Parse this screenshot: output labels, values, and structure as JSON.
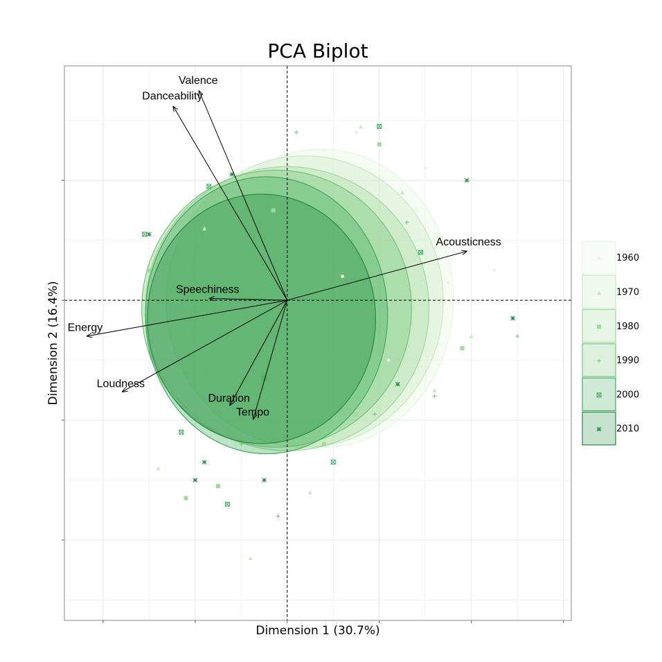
{
  "chart_data": {
    "type": "biplot",
    "title": "PCA Biplot",
    "x_label": "Dimension 1 (30.7%)",
    "y_label": "Dimension 2 (16.4%)",
    "xlim": [
      -4.84,
      6.17
    ],
    "ylim": [
      -5.34,
      3.91
    ],
    "xticks": [
      -4,
      -2,
      0,
      2,
      4,
      6
    ],
    "yticks": [
      -4,
      -2,
      0,
      2
    ],
    "xminor": [
      -3,
      -1,
      1,
      3,
      5
    ],
    "yminor": [
      -5,
      -3,
      -1,
      1,
      3
    ],
    "grid": true,
    "hline": 0,
    "vline": 0,
    "legend": "right",
    "loadings": [
      {
        "name": "Valence",
        "x": -1.92,
        "y": 3.5
      },
      {
        "name": "Danceability",
        "x": -2.48,
        "y": 3.24
      },
      {
        "name": "Acousticness",
        "x": 3.91,
        "y": 0.82
      },
      {
        "name": "Speechiness",
        "x": -1.7,
        "y": 0.03
      },
      {
        "name": "Energy",
        "x": -4.36,
        "y": -0.6
      },
      {
        "name": "Loudness",
        "x": -3.59,
        "y": -1.53
      },
      {
        "name": "Duration",
        "x": -1.25,
        "y": -1.76
      },
      {
        "name": "Tempo",
        "x": -0.74,
        "y": -1.99
      }
    ],
    "series": [
      {
        "name": "1960",
        "color": "#e5f5e0",
        "marker": "circle",
        "ellipse": {
          "cx": 0.75,
          "cy": 0.03,
          "rx": 2.86,
          "ry": 2.49
        },
        "x": [
          1.5,
          2.8,
          3.5,
          2.2,
          4.5,
          0.8,
          3.0,
          1.2
        ],
        "y": [
          2.8,
          1.5,
          0.3,
          -1.0,
          0.5,
          2.5,
          2.2,
          0.4
        ]
      },
      {
        "name": "1970",
        "color": "#c7e9c0",
        "marker": "triangle",
        "ellipse": {
          "cx": 0.38,
          "cy": -0.02,
          "rx": 3.01,
          "ry": 2.43
        },
        "x": [
          -2.8,
          1.6,
          3.2,
          0.5,
          2.5,
          -1.8,
          4.0,
          -0.8
        ],
        "y": [
          -2.8,
          2.9,
          -1.5,
          -3.2,
          1.8,
          1.2,
          -0.6,
          -4.3
        ]
      },
      {
        "name": "1980",
        "color": "#a1d99b",
        "marker": "square",
        "ellipse": {
          "cx": 0,
          "cy": -0.14,
          "rx": 3.08,
          "ry": 2.37
        },
        "x": [
          -1.5,
          2.0,
          -3.0,
          0.8,
          1.5,
          -2.2,
          3.8,
          -0.3
        ],
        "y": [
          -3.1,
          2.6,
          0.5,
          -2.4,
          -1.9,
          -3.3,
          -0.8,
          1.5
        ]
      },
      {
        "name": "1990",
        "color": "#74c476",
        "marker": "plus",
        "ellipse": {
          "cx": -0.23,
          "cy": -0.14,
          "rx": 2.93,
          "ry": 2.31
        },
        "x": [
          -1.0,
          3.2,
          0.2,
          -2.5,
          2.6,
          -0.2,
          5.0,
          1.9
        ],
        "y": [
          -2.4,
          -1.6,
          2.8,
          -1.1,
          1.3,
          -3.6,
          -0.6,
          -1.9
        ]
      },
      {
        "name": "2000",
        "color": "#41ab5d",
        "marker": "boxx",
        "ellipse": {
          "cx": -0.45,
          "cy": -0.25,
          "rx": 2.63,
          "ry": 2.31
        },
        "x": [
          -2.3,
          -1.3,
          2.0,
          -3.1,
          1.0,
          -0.5,
          2.9,
          -1.7
        ],
        "y": [
          -2.2,
          -3.4,
          2.9,
          1.1,
          -2.7,
          -1.3,
          0.8,
          1.9
        ]
      },
      {
        "name": "2010",
        "color": "#238b45",
        "marker": "asterisk",
        "ellipse": {
          "cx": -0.56,
          "cy": -0.31,
          "rx": 2.48,
          "ry": 2.08
        },
        "x": [
          -3.0,
          -1.8,
          3.9,
          -0.5,
          2.4,
          -2.0,
          4.9,
          -1.2
        ],
        "y": [
          1.1,
          -2.7,
          2.0,
          -3.0,
          -1.4,
          -3.0,
          -0.3,
          2.1
        ]
      }
    ]
  }
}
